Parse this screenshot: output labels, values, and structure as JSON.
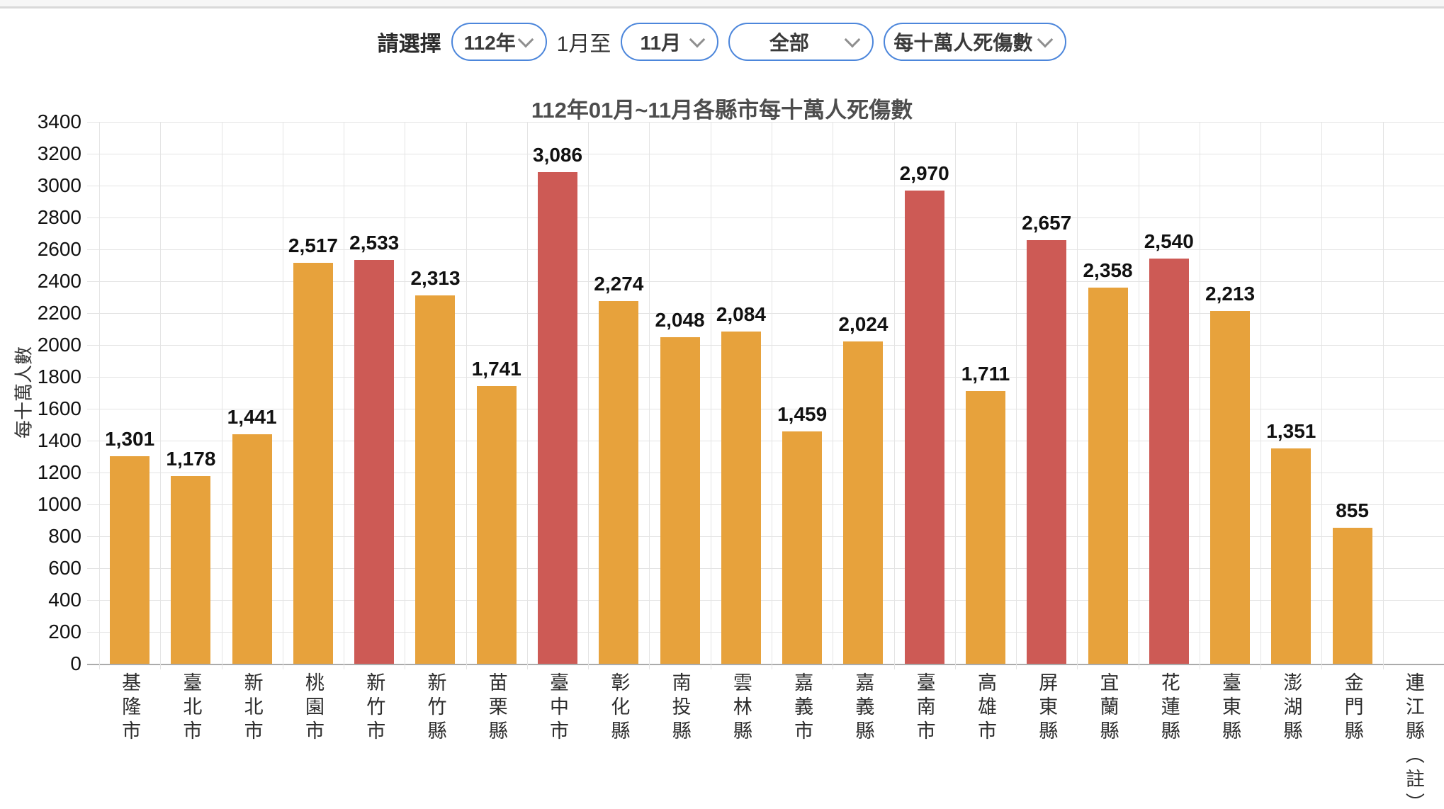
{
  "controls": {
    "label": "請選擇",
    "year_select": {
      "value": "112年"
    },
    "month_join_text": "1月至",
    "month_select": {
      "value": "11月"
    },
    "region_select": {
      "value": "全部"
    },
    "metric_select": {
      "value": "每十萬人死傷數"
    },
    "accent_border_color": "#4C86DB"
  },
  "chart_data": {
    "type": "bar",
    "title": "112年01月~11月各縣市每十萬人死傷數",
    "xlabel": "",
    "ylabel": "每十萬人數",
    "ylim": [
      0,
      3400
    ],
    "ytick_step": 200,
    "grid": true,
    "legend": "none",
    "categories": [
      "基隆市",
      "臺北市",
      "新北市",
      "桃園市",
      "新竹市",
      "新竹縣",
      "苗栗縣",
      "臺中市",
      "彰化縣",
      "南投縣",
      "雲林縣",
      "嘉義市",
      "嘉義縣",
      "臺南市",
      "高雄市",
      "屏東縣",
      "宜蘭縣",
      "花蓮縣",
      "臺東縣",
      "澎湖縣",
      "金門縣",
      "連江縣（註）"
    ],
    "values": [
      1301,
      1178,
      1441,
      2517,
      2533,
      2313,
      1741,
      3086,
      2274,
      2048,
      2084,
      1459,
      2024,
      2970,
      1711,
      2657,
      2358,
      2540,
      2213,
      1351,
      855,
      null
    ],
    "value_labels": [
      "1,301",
      "1,178",
      "1,441",
      "2,517",
      "2,533",
      "2,313",
      "1,741",
      "3,086",
      "2,274",
      "2,048",
      "2,084",
      "1,459",
      "2,024",
      "2,970",
      "1,711",
      "2,657",
      "2,358",
      "2,540",
      "2,213",
      "1,351",
      "855",
      ""
    ],
    "bar_color_default": "#E7A23C",
    "bar_color_highlight": "#CD5A55",
    "highlight_indices": [
      4,
      7,
      13,
      15,
      17
    ],
    "gridline_color": "#e4e4e4",
    "baseline_color": "#ababab"
  }
}
